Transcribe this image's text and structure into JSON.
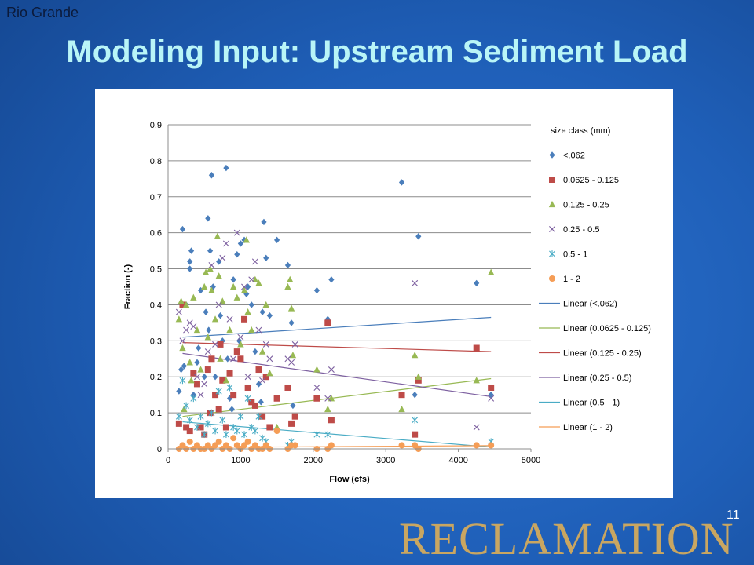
{
  "slide": {
    "section_label": "Rio Grande",
    "title": "Modeling Input: Upstream Sediment Load",
    "page_number": "11",
    "logo_text": "RECLAMATION"
  },
  "colors": {
    "background": "#1f5fb8",
    "title": "#b9f5f7",
    "logo": "#c9a661"
  },
  "chart_data": {
    "type": "scatter",
    "xlabel": "Flow (cfs)",
    "ylabel": "Fraction (-)",
    "xlim": [
      0,
      5000
    ],
    "ylim": [
      0,
      0.9
    ],
    "x_ticks": [
      "0",
      "1000",
      "2000",
      "3000",
      "4000",
      "5000"
    ],
    "y_ticks": [
      "0",
      "0.1",
      "0.2",
      "0.3",
      "0.4",
      "0.5",
      "0.6",
      "0.7",
      "0.8",
      "0.9"
    ],
    "grid": "horizontal",
    "legend_title": "size class (mm)",
    "legend_position": "right",
    "series": [
      {
        "name": "<.062",
        "marker": "diamond",
        "color": "#4a7ebb",
        "points": [
          [
            150,
            0.16
          ],
          [
            180,
            0.22
          ],
          [
            200,
            0.61
          ],
          [
            220,
            0.23
          ],
          [
            250,
            0.4
          ],
          [
            300,
            0.52
          ],
          [
            300,
            0.5
          ],
          [
            320,
            0.55
          ],
          [
            350,
            0.15
          ],
          [
            400,
            0.24
          ],
          [
            420,
            0.28
          ],
          [
            450,
            0.44
          ],
          [
            500,
            0.2
          ],
          [
            520,
            0.38
          ],
          [
            550,
            0.64
          ],
          [
            560,
            0.33
          ],
          [
            580,
            0.55
          ],
          [
            600,
            0.76
          ],
          [
            620,
            0.45
          ],
          [
            650,
            0.2
          ],
          [
            700,
            0.52
          ],
          [
            720,
            0.37
          ],
          [
            750,
            0.3
          ],
          [
            800,
            0.78
          ],
          [
            820,
            0.25
          ],
          [
            850,
            0.14
          ],
          [
            880,
            0.11
          ],
          [
            900,
            0.47
          ],
          [
            950,
            0.54
          ],
          [
            980,
            0.3
          ],
          [
            1000,
            0.57
          ],
          [
            1050,
            0.58
          ],
          [
            1080,
            0.43
          ],
          [
            1100,
            0.45
          ],
          [
            1150,
            0.4
          ],
          [
            1200,
            0.27
          ],
          [
            1250,
            0.18
          ],
          [
            1280,
            0.13
          ],
          [
            1300,
            0.38
          ],
          [
            1320,
            0.63
          ],
          [
            1350,
            0.53
          ],
          [
            1400,
            0.37
          ],
          [
            1500,
            0.58
          ],
          [
            1650,
            0.51
          ],
          [
            1700,
            0.35
          ],
          [
            1720,
            0.12
          ],
          [
            2050,
            0.44
          ],
          [
            2200,
            0.36
          ],
          [
            2250,
            0.47
          ],
          [
            3220,
            0.74
          ],
          [
            3400,
            0.15
          ],
          [
            3450,
            0.59
          ],
          [
            4250,
            0.46
          ],
          [
            4450,
            0.15
          ]
        ]
      },
      {
        "name": "0.0625 - 0.125",
        "marker": "square",
        "color": "#be4b48",
        "points": [
          [
            150,
            0.07
          ],
          [
            200,
            0.4
          ],
          [
            250,
            0.06
          ],
          [
            300,
            0.05
          ],
          [
            350,
            0.21
          ],
          [
            400,
            0.18
          ],
          [
            450,
            0.06
          ],
          [
            500,
            0.04
          ],
          [
            550,
            0.22
          ],
          [
            580,
            0.1
          ],
          [
            600,
            0.25
          ],
          [
            650,
            0.15
          ],
          [
            700,
            0.11
          ],
          [
            720,
            0.29
          ],
          [
            750,
            0.19
          ],
          [
            800,
            0.06
          ],
          [
            850,
            0.21
          ],
          [
            900,
            0.15
          ],
          [
            950,
            0.27
          ],
          [
            1000,
            0.25
          ],
          [
            1050,
            0.36
          ],
          [
            1100,
            0.17
          ],
          [
            1150,
            0.13
          ],
          [
            1200,
            0.12
          ],
          [
            1250,
            0.22
          ],
          [
            1300,
            0.09
          ],
          [
            1350,
            0.2
          ],
          [
            1400,
            0.06
          ],
          [
            1500,
            0.14
          ],
          [
            1650,
            0.17
          ],
          [
            1700,
            0.07
          ],
          [
            1750,
            0.09
          ],
          [
            2050,
            0.14
          ],
          [
            2200,
            0.35
          ],
          [
            2250,
            0.08
          ],
          [
            3220,
            0.15
          ],
          [
            3400,
            0.04
          ],
          [
            3450,
            0.19
          ],
          [
            4250,
            0.28
          ],
          [
            4450,
            0.17
          ]
        ]
      },
      {
        "name": "0.125 - 0.25",
        "marker": "triangle",
        "color": "#98b954",
        "points": [
          [
            150,
            0.36
          ],
          [
            180,
            0.41
          ],
          [
            200,
            0.28
          ],
          [
            220,
            0.11
          ],
          [
            250,
            0.4
          ],
          [
            300,
            0.24
          ],
          [
            320,
            0.19
          ],
          [
            350,
            0.42
          ],
          [
            400,
            0.33
          ],
          [
            450,
            0.22
          ],
          [
            500,
            0.45
          ],
          [
            520,
            0.49
          ],
          [
            550,
            0.31
          ],
          [
            580,
            0.5
          ],
          [
            600,
            0.44
          ],
          [
            650,
            0.36
          ],
          [
            680,
            0.59
          ],
          [
            700,
            0.48
          ],
          [
            720,
            0.25
          ],
          [
            750,
            0.41
          ],
          [
            800,
            0.19
          ],
          [
            850,
            0.33
          ],
          [
            900,
            0.45
          ],
          [
            950,
            0.42
          ],
          [
            1000,
            0.29
          ],
          [
            1050,
            0.44
          ],
          [
            1080,
            0.58
          ],
          [
            1100,
            0.38
          ],
          [
            1150,
            0.33
          ],
          [
            1200,
            0.47
          ],
          [
            1250,
            0.46
          ],
          [
            1300,
            0.27
          ],
          [
            1350,
            0.4
          ],
          [
            1400,
            0.21
          ],
          [
            1500,
            0.06
          ],
          [
            1650,
            0.45
          ],
          [
            1680,
            0.47
          ],
          [
            1700,
            0.39
          ],
          [
            1720,
            0.26
          ],
          [
            2050,
            0.22
          ],
          [
            2200,
            0.11
          ],
          [
            2250,
            0.14
          ],
          [
            3220,
            0.11
          ],
          [
            3400,
            0.26
          ],
          [
            3450,
            0.2
          ],
          [
            4250,
            0.19
          ],
          [
            4450,
            0.49
          ]
        ]
      },
      {
        "name": "0.25 - 0.5",
        "marker": "x",
        "color": "#7d60a0",
        "points": [
          [
            150,
            0.38
          ],
          [
            200,
            0.3
          ],
          [
            250,
            0.33
          ],
          [
            300,
            0.35
          ],
          [
            350,
            0.34
          ],
          [
            400,
            0.2
          ],
          [
            450,
            0.15
          ],
          [
            500,
            0.18
          ],
          [
            550,
            0.27
          ],
          [
            600,
            0.51
          ],
          [
            650,
            0.29
          ],
          [
            700,
            0.4
          ],
          [
            750,
            0.53
          ],
          [
            800,
            0.57
          ],
          [
            850,
            0.36
          ],
          [
            900,
            0.25
          ],
          [
            950,
            0.6
          ],
          [
            1000,
            0.31
          ],
          [
            1050,
            0.45
          ],
          [
            1100,
            0.2
          ],
          [
            1150,
            0.47
          ],
          [
            1200,
            0.52
          ],
          [
            1250,
            0.33
          ],
          [
            1300,
            0.19
          ],
          [
            1350,
            0.29
          ],
          [
            1400,
            0.25
          ],
          [
            1650,
            0.25
          ],
          [
            1700,
            0.24
          ],
          [
            1750,
            0.29
          ],
          [
            2050,
            0.17
          ],
          [
            2200,
            0.14
          ],
          [
            2250,
            0.22
          ],
          [
            3400,
            0.46
          ],
          [
            4250,
            0.06
          ],
          [
            4450,
            0.14
          ]
        ]
      },
      {
        "name": "0.5 - 1",
        "marker": "asterisk",
        "color": "#4aacc5",
        "points": [
          [
            150,
            0.09
          ],
          [
            200,
            0.19
          ],
          [
            250,
            0.12
          ],
          [
            300,
            0.08
          ],
          [
            350,
            0.14
          ],
          [
            400,
            0.06
          ],
          [
            450,
            0.09
          ],
          [
            500,
            0.04
          ],
          [
            550,
            0.07
          ],
          [
            600,
            0.1
          ],
          [
            650,
            0.05
          ],
          [
            700,
            0.16
          ],
          [
            750,
            0.08
          ],
          [
            800,
            0.04
          ],
          [
            850,
            0.17
          ],
          [
            900,
            0.06
          ],
          [
            950,
            0.05
          ],
          [
            1000,
            0.09
          ],
          [
            1050,
            0.04
          ],
          [
            1100,
            0.14
          ],
          [
            1150,
            0.06
          ],
          [
            1200,
            0.05
          ],
          [
            1250,
            0.09
          ],
          [
            1300,
            0.03
          ],
          [
            1350,
            0.02
          ],
          [
            1650,
            0.01
          ],
          [
            1700,
            0.02
          ],
          [
            2050,
            0.04
          ],
          [
            2200,
            0.04
          ],
          [
            3400,
            0.08
          ],
          [
            4450,
            0.02
          ]
        ]
      },
      {
        "name": "1 - 2",
        "marker": "circle",
        "color": "#f59d56",
        "points": [
          [
            150,
            0.0
          ],
          [
            200,
            0.01
          ],
          [
            250,
            0.0
          ],
          [
            300,
            0.02
          ],
          [
            350,
            0.0
          ],
          [
            400,
            0.01
          ],
          [
            450,
            0.0
          ],
          [
            500,
            0.0
          ],
          [
            550,
            0.01
          ],
          [
            600,
            0.0
          ],
          [
            650,
            0.01
          ],
          [
            700,
            0.02
          ],
          [
            750,
            0.0
          ],
          [
            800,
            0.01
          ],
          [
            850,
            0.0
          ],
          [
            900,
            0.03
          ],
          [
            950,
            0.01
          ],
          [
            1000,
            0.0
          ],
          [
            1050,
            0.01
          ],
          [
            1100,
            0.02
          ],
          [
            1150,
            0.0
          ],
          [
            1200,
            0.01
          ],
          [
            1250,
            0.0
          ],
          [
            1300,
            0.0
          ],
          [
            1350,
            0.01
          ],
          [
            1400,
            0.0
          ],
          [
            1500,
            0.05
          ],
          [
            1650,
            0.0
          ],
          [
            1700,
            0.01
          ],
          [
            1750,
            0.01
          ],
          [
            2050,
            0.0
          ],
          [
            2200,
            0.0
          ],
          [
            2250,
            0.01
          ],
          [
            3220,
            0.01
          ],
          [
            3400,
            0.01
          ],
          [
            3450,
            0.0
          ],
          [
            4250,
            0.01
          ],
          [
            4450,
            0.01
          ]
        ]
      }
    ],
    "trendlines": [
      {
        "name": "Linear (<.062)",
        "color": "#4a7ebb",
        "x": [
          200,
          4450
        ],
        "y": [
          0.31,
          0.365
        ]
      },
      {
        "name": "Linear (0.0625 - 0.125)",
        "color": "#98b954",
        "x": [
          200,
          4450
        ],
        "y": [
          0.09,
          0.195
        ]
      },
      {
        "name": "Linear (0.125 - 0.25)",
        "color": "#be4b48",
        "x": [
          200,
          4450
        ],
        "y": [
          0.295,
          0.27
        ]
      },
      {
        "name": "Linear (0.25 - 0.5)",
        "color": "#7d60a0",
        "x": [
          200,
          4450
        ],
        "y": [
          0.265,
          0.145
        ]
      },
      {
        "name": "Linear (0.5 - 1)",
        "color": "#4aacc5",
        "x": [
          200,
          4450
        ],
        "y": [
          0.075,
          0.005
        ]
      },
      {
        "name": "Linear (1 - 2)",
        "color": "#f59d56",
        "x": [
          200,
          4450
        ],
        "y": [
          0.004,
          0.009
        ]
      }
    ]
  }
}
